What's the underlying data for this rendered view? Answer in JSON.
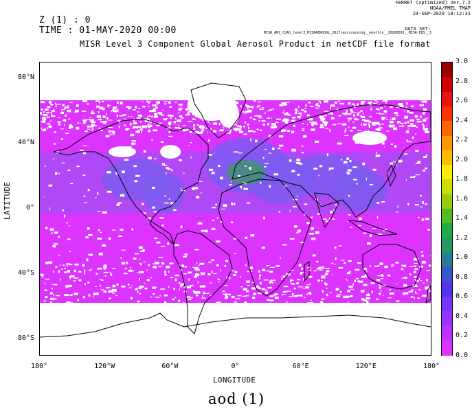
{
  "header": {
    "software_line1": "FERRET (optimized) Ver.7.2",
    "software_line2": "NOAA/PMEL TMAP",
    "software_line3": "24-SEP-2020 18:12:31",
    "dataset_label": "DATA SET:",
    "dataset_file": "MISR_AM1_CGAS_level3_MISRAEROSOL_2017reprocessing__monthly__20200501__MISR-EDS__3.0.2",
    "z_line": "Z (1) : 0",
    "time_line": "TIME : 01-MAY-2020 00:00",
    "title": "MISR Level 3 Component Global Aerosol Product in netCDF file format"
  },
  "map": {
    "xlabel": "LONGITUDE",
    "ylabel": "LATITUDE",
    "x_ticks": [
      "180°",
      "120°W",
      "60°W",
      "0°",
      "60°E",
      "120°E",
      "180°"
    ],
    "y_ticks": [
      "80°N",
      "40°N",
      "0°",
      "40°S",
      "80°S"
    ],
    "x_tick_values": [
      -180,
      -120,
      -60,
      0,
      60,
      120,
      180
    ],
    "y_tick_values": [
      80,
      40,
      0,
      -40,
      -80
    ],
    "lon_range": [
      -180,
      180
    ],
    "lat_range": [
      -90,
      90
    ],
    "field_colors": {
      "low": "#dd33ff",
      "mid": "#a94cf5",
      "high": "#7a5cf0",
      "highest": "#3a9a62",
      "land_outline": "#000000",
      "missing": "#ffffff"
    }
  },
  "colorbar": {
    "labels": [
      "3.0",
      "2.8",
      "2.6",
      "2.4",
      "2.2",
      "2.0",
      "1.8",
      "1.6",
      "1.4",
      "1.2",
      "1.0",
      "0.8",
      "0.6",
      "0.4",
      "0.2",
      "0.0"
    ],
    "colors": [
      "#990000",
      "#cc0000",
      "#ee1111",
      "#ff3300",
      "#ff6600",
      "#ff9900",
      "#ffbb00",
      "#ffee00",
      "#ccdd00",
      "#99cc11",
      "#55bb22",
      "#22aa44",
      "#229966",
      "#2a7a99",
      "#3a55cc",
      "#5533ee",
      "#7733ff",
      "#9933ff",
      "#bb33ff",
      "#dd33ff"
    ],
    "range": [
      0.0,
      3.0
    ]
  },
  "caption": "aod (1)"
}
